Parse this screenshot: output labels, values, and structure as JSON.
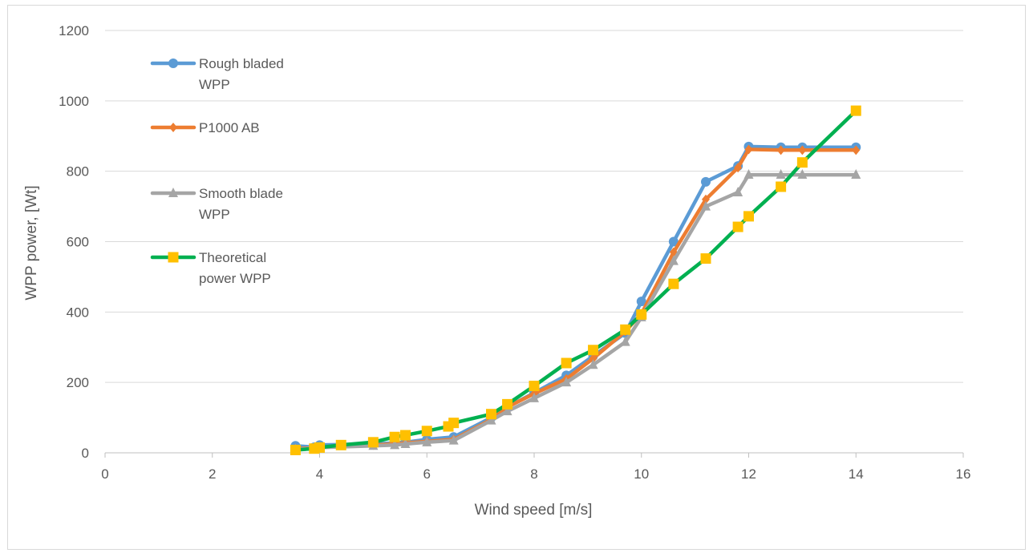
{
  "chart_data": {
    "type": "line",
    "title": "",
    "xlabel": "Wind speed [m/s]",
    "ylabel": "WPP power, [Wt]",
    "xlim": [
      0,
      16
    ],
    "ylim": [
      0,
      1200
    ],
    "xticks": [
      "0",
      "2",
      "4",
      "6",
      "8",
      "10",
      "12",
      "14",
      "16"
    ],
    "yticks": [
      "0",
      "200",
      "400",
      "600",
      "800",
      "1000",
      "1200"
    ],
    "grid": "horizontal",
    "legend_position": "top-left",
    "series": [
      {
        "name": "Rough bladed WPP",
        "color": "#5b9bd5",
        "marker": "circle",
        "points": [
          [
            3.55,
            20
          ],
          [
            3.9,
            16
          ],
          [
            4.0,
            22
          ],
          [
            5.0,
            25
          ],
          [
            5.4,
            28
          ],
          [
            5.6,
            30
          ],
          [
            6.0,
            38
          ],
          [
            6.5,
            45
          ],
          [
            7.2,
            100
          ],
          [
            7.5,
            130
          ],
          [
            8.0,
            170
          ],
          [
            8.6,
            220
          ],
          [
            9.1,
            275
          ],
          [
            9.7,
            340
          ],
          [
            10.0,
            430
          ],
          [
            10.6,
            600
          ],
          [
            11.2,
            770
          ],
          [
            11.8,
            815
          ],
          [
            12.0,
            870
          ],
          [
            12.6,
            868
          ],
          [
            13.0,
            868
          ],
          [
            14.0,
            868
          ]
        ]
      },
      {
        "name": "P1000 AB",
        "color": "#ed7d31",
        "marker": "diamond",
        "points": [
          [
            3.55,
            12
          ],
          [
            3.9,
            14
          ],
          [
            4.0,
            16
          ],
          [
            5.0,
            22
          ],
          [
            5.4,
            25
          ],
          [
            5.6,
            28
          ],
          [
            6.0,
            32
          ],
          [
            6.5,
            38
          ],
          [
            7.2,
            95
          ],
          [
            7.5,
            130
          ],
          [
            8.0,
            168
          ],
          [
            8.6,
            210
          ],
          [
            9.1,
            268
          ],
          [
            9.7,
            345
          ],
          [
            10.0,
            395
          ],
          [
            10.6,
            570
          ],
          [
            11.2,
            720
          ],
          [
            11.8,
            810
          ],
          [
            12.0,
            862
          ],
          [
            12.6,
            860
          ],
          [
            13.0,
            860
          ],
          [
            14.0,
            860
          ]
        ]
      },
      {
        "name": "Smooth blade WPP",
        "color": "#a5a5a5",
        "marker": "triangle",
        "points": [
          [
            3.55,
            10
          ],
          [
            3.9,
            13
          ],
          [
            4.0,
            15
          ],
          [
            5.0,
            20
          ],
          [
            5.4,
            22
          ],
          [
            5.6,
            25
          ],
          [
            6.0,
            30
          ],
          [
            6.5,
            35
          ],
          [
            7.2,
            92
          ],
          [
            7.5,
            118
          ],
          [
            8.0,
            155
          ],
          [
            8.6,
            200
          ],
          [
            9.1,
            250
          ],
          [
            9.7,
            315
          ],
          [
            10.0,
            385
          ],
          [
            10.6,
            545
          ],
          [
            11.2,
            700
          ],
          [
            11.8,
            740
          ],
          [
            12.0,
            790
          ],
          [
            12.6,
            790
          ],
          [
            13.0,
            790
          ],
          [
            14.0,
            790
          ]
        ]
      },
      {
        "name": "Theoretical power WPP",
        "color": "#00b050",
        "marker": "square",
        "marker_color": "#ffc000",
        "points": [
          [
            3.55,
            8
          ],
          [
            3.9,
            12
          ],
          [
            4.0,
            15
          ],
          [
            4.4,
            22
          ],
          [
            5.0,
            30
          ],
          [
            5.4,
            45
          ],
          [
            5.6,
            50
          ],
          [
            6.0,
            62
          ],
          [
            6.4,
            75
          ],
          [
            6.5,
            85
          ],
          [
            7.2,
            110
          ],
          [
            7.5,
            138
          ],
          [
            8.0,
            190
          ],
          [
            8.6,
            255
          ],
          [
            9.1,
            292
          ],
          [
            9.7,
            350
          ],
          [
            10.0,
            393
          ],
          [
            10.6,
            480
          ],
          [
            11.2,
            552
          ],
          [
            11.8,
            642
          ],
          [
            12.0,
            672
          ],
          [
            12.6,
            756
          ],
          [
            13.0,
            825
          ],
          [
            14.0,
            972
          ]
        ]
      }
    ],
    "legend": [
      {
        "lines": [
          "Rough bladed",
          "WPP"
        ]
      },
      {
        "lines": [
          "P1000 AB"
        ]
      },
      {
        "lines": [
          "Smooth blade",
          "WPP"
        ]
      },
      {
        "lines": [
          "Theoretical",
          "power WPP"
        ]
      }
    ]
  }
}
